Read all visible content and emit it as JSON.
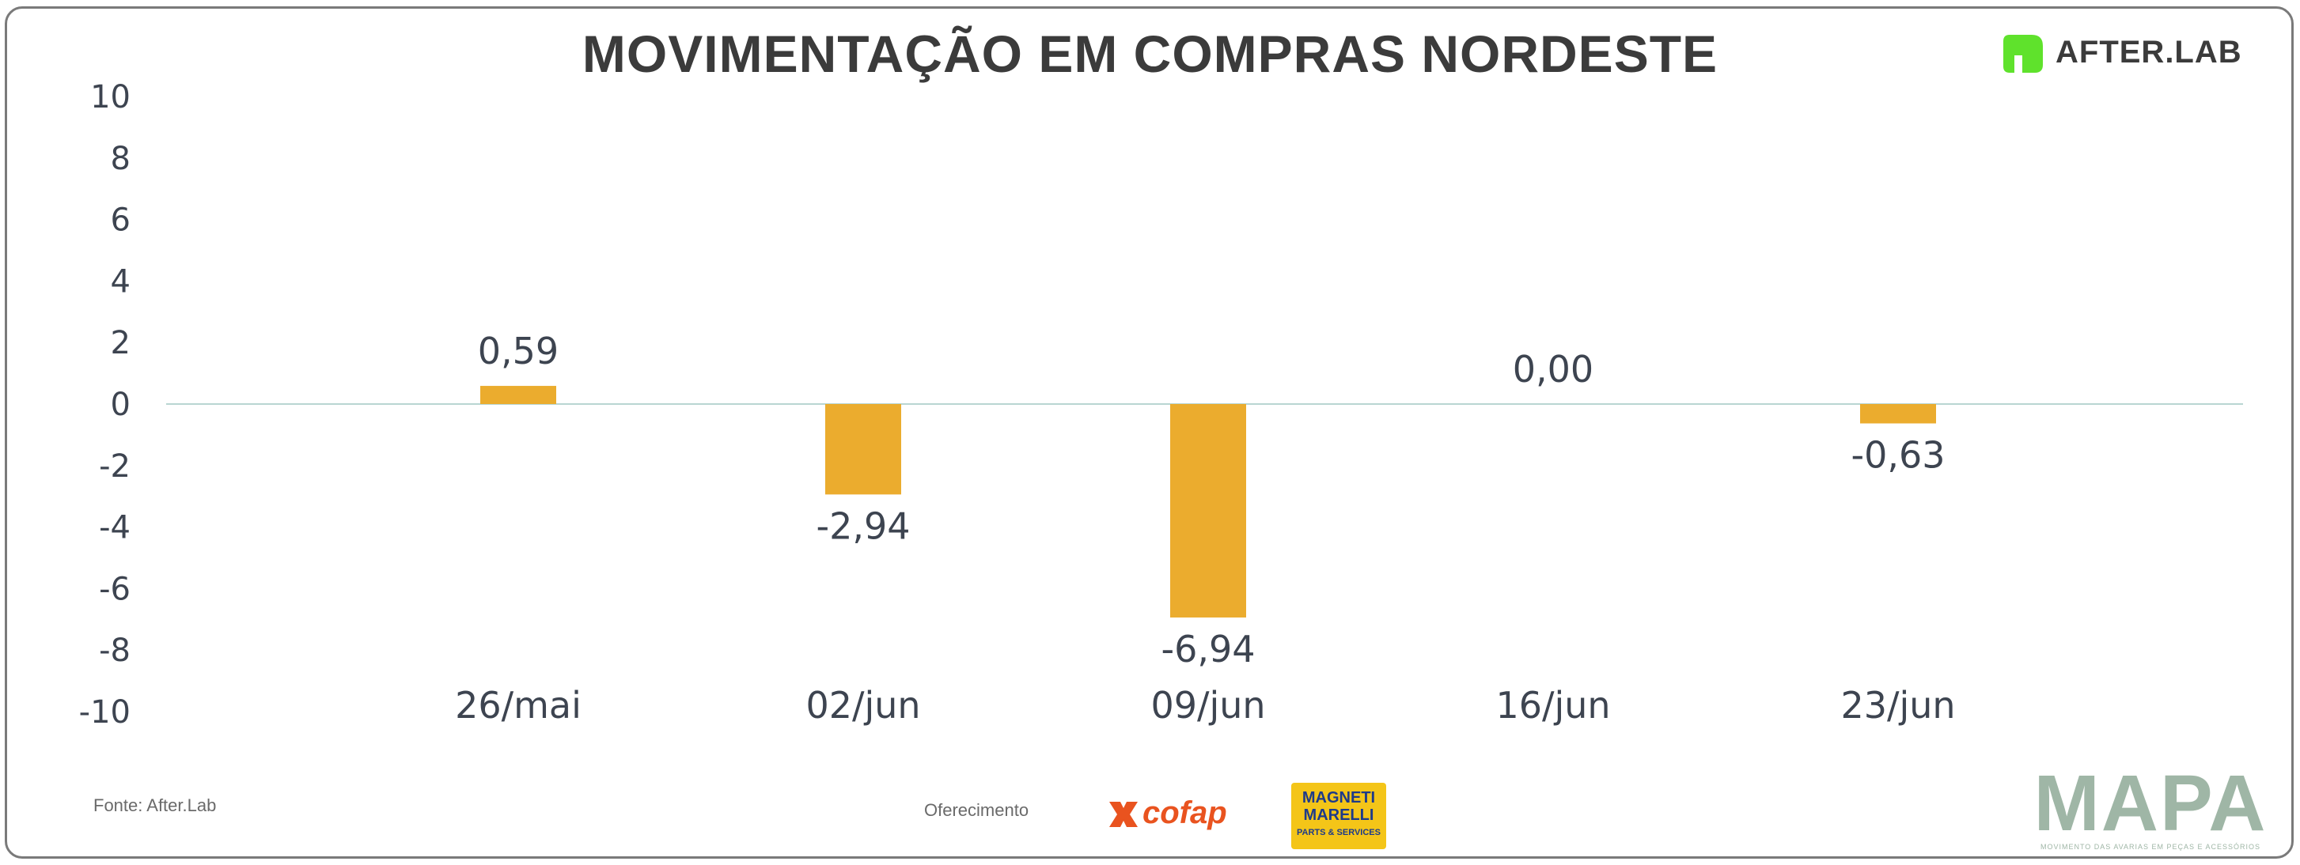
{
  "header": {
    "title": "MOVIMENTAÇÃO EM COMPRAS NORDESTE",
    "brand_name": "AFTER.LAB"
  },
  "footer": {
    "source": "Fonte: After.Lab",
    "sponsor_label": "Oferecimento",
    "sponsor_cofap": "cofap",
    "sponsor_magneti_top": "MAGNETI MARELLI",
    "sponsor_magneti_sub": "PARTS & SERVICES",
    "mapa_title": "MAPA",
    "mapa_subtitle": "MOVIMENTO DAS AVARIAS EM PEÇAS E ACESSÓRIOS"
  },
  "colors": {
    "bar": "#ebac2e",
    "zero_line": "#b9d6d2",
    "text": "#3d4450",
    "brand_green": "#5fe22c"
  },
  "chart_data": {
    "type": "bar",
    "title": "MOVIMENTAÇÃO EM COMPRAS NORDESTE",
    "xlabel": "",
    "ylabel": "",
    "categories": [
      "26/mai",
      "02/jun",
      "09/jun",
      "16/jun",
      "23/jun"
    ],
    "values": [
      0.59,
      -2.94,
      -6.94,
      0.0,
      -0.63
    ],
    "value_labels": [
      "0,59",
      "-2,94",
      "-6,94",
      "0,00",
      "-0,63"
    ],
    "ylim": [
      -10,
      10
    ],
    "yticks": [
      10,
      8,
      6,
      4,
      2,
      0,
      -2,
      -4,
      -6,
      -8,
      -10
    ],
    "grid": false,
    "legend": "none"
  }
}
